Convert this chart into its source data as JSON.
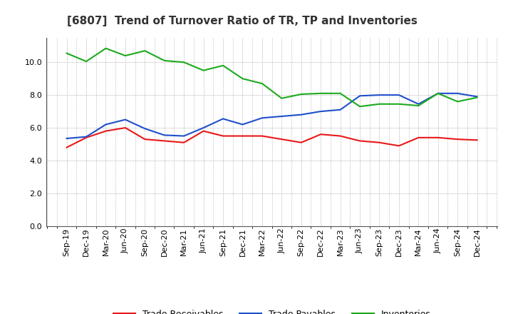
{
  "title": "[6807]  Trend of Turnover Ratio of TR, TP and Inventories",
  "x_labels": [
    "Sep-19",
    "Dec-19",
    "Mar-20",
    "Jun-20",
    "Sep-20",
    "Dec-20",
    "Mar-21",
    "Jun-21",
    "Sep-21",
    "Dec-21",
    "Mar-22",
    "Jun-22",
    "Sep-22",
    "Dec-22",
    "Mar-23",
    "Jun-23",
    "Sep-23",
    "Dec-23",
    "Mar-24",
    "Jun-24",
    "Sep-24",
    "Dec-24"
  ],
  "trade_receivables": [
    4.8,
    5.4,
    5.8,
    6.0,
    5.3,
    5.2,
    5.1,
    5.8,
    5.5,
    5.5,
    5.5,
    5.3,
    5.1,
    5.6,
    5.5,
    5.2,
    5.1,
    4.9,
    5.4,
    5.4,
    5.3,
    5.25
  ],
  "trade_payables": [
    5.35,
    5.45,
    6.2,
    6.5,
    5.95,
    5.55,
    5.5,
    6.0,
    6.55,
    6.2,
    6.6,
    6.7,
    6.8,
    7.0,
    7.1,
    7.95,
    8.0,
    8.0,
    7.45,
    8.1,
    8.1,
    7.9
  ],
  "inventories": [
    10.55,
    10.05,
    10.85,
    10.4,
    10.7,
    10.1,
    10.0,
    9.5,
    9.8,
    9.0,
    8.7,
    7.8,
    8.05,
    8.1,
    8.1,
    7.3,
    7.45,
    7.45,
    7.35,
    8.1,
    7.6,
    7.85
  ],
  "ylim": [
    0,
    11.5
  ],
  "yticks": [
    0.0,
    2.0,
    4.0,
    6.0,
    8.0,
    10.0
  ],
  "line_color_tr": "#e8191a",
  "line_color_tp": "#1f4fcc",
  "line_color_inv": "#1daa1d",
  "legend_labels": [
    "Trade Receivables",
    "Trade Payables",
    "Inventories"
  ],
  "background_color": "#ffffff",
  "grid_color": "#999999",
  "title_fontsize": 11,
  "title_color": "#333333",
  "axis_fontsize": 8,
  "legend_fontsize": 9
}
